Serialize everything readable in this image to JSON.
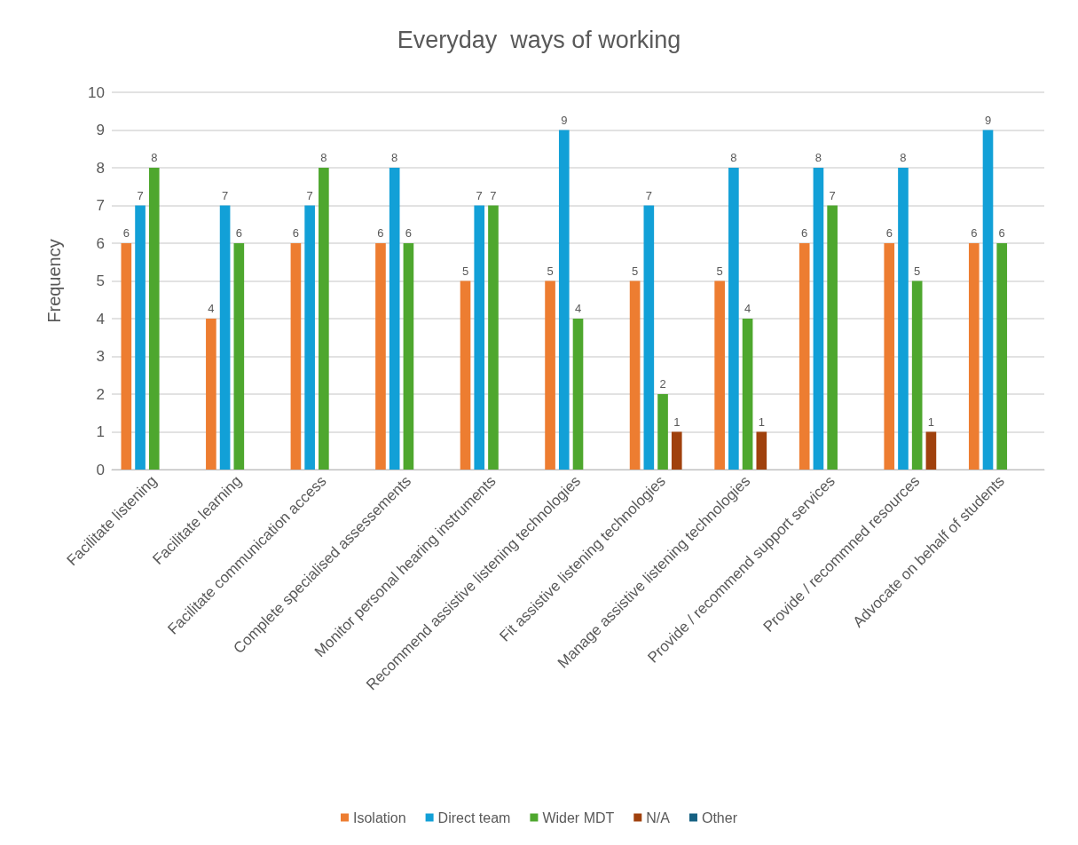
{
  "chart_data": {
    "type": "bar",
    "title": "Everyday  ways of working",
    "ylabel": "Frequency",
    "categories": [
      "Facilitate listening",
      "Facilitate learning",
      "Facilitate communication access",
      "Complete specialised assessements",
      "Monitor personal hearing instruments",
      "Recommend assistive listening technologies",
      "Fit assistive listening technologies",
      "Manage assistive listening technologies",
      "Provide / recommend support services",
      "Provide / recommned resources",
      "Advocate on behalf of students"
    ],
    "series": [
      {
        "name": "Isolation",
        "color": "#ed7d31",
        "values": [
          6,
          4,
          6,
          6,
          5,
          5,
          5,
          5,
          6,
          6,
          6
        ]
      },
      {
        "name": "Direct team",
        "color": "#12a0d7",
        "values": [
          7,
          7,
          7,
          8,
          7,
          9,
          7,
          8,
          8,
          8,
          9
        ]
      },
      {
        "name": "Wider MDT",
        "color": "#4ea72e",
        "values": [
          8,
          6,
          8,
          6,
          7,
          4,
          2,
          4,
          7,
          5,
          6
        ]
      },
      {
        "name": "N/A",
        "color": "#a0410d",
        "values": [
          null,
          null,
          null,
          null,
          null,
          null,
          1,
          1,
          null,
          1,
          null
        ]
      },
      {
        "name": "Other",
        "color": "#156082",
        "values": [
          null,
          null,
          null,
          null,
          null,
          null,
          null,
          null,
          null,
          null,
          null
        ]
      }
    ],
    "ylim": [
      0,
      10
    ],
    "yticks": [
      0,
      1,
      2,
      3,
      4,
      5,
      6,
      7,
      8,
      9,
      10
    ],
    "grid": "y",
    "legend": "bottom",
    "data_labels": true
  }
}
